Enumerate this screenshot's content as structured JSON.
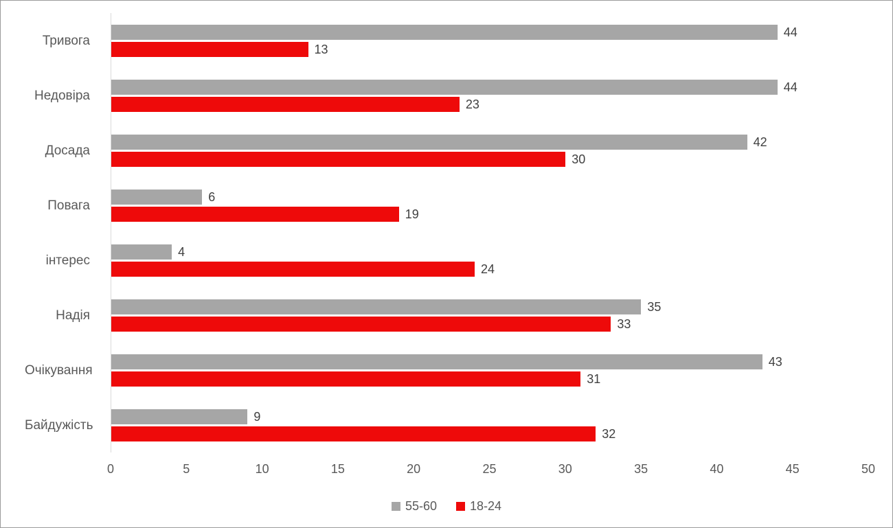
{
  "chart_data": {
    "type": "bar",
    "orientation": "horizontal",
    "title": "",
    "xlabel": "",
    "ylabel": "",
    "xlim": [
      0,
      50
    ],
    "xticks": [
      0,
      5,
      10,
      15,
      20,
      25,
      30,
      35,
      40,
      45,
      50
    ],
    "grid": false,
    "legend_position": "bottom",
    "categories": [
      "Тривога",
      "Недовіра",
      "Досада",
      "Повага",
      "інтерес",
      "Надія",
      "Очікування",
      "Байдужість"
    ],
    "series": [
      {
        "name": "55-60",
        "color": "#a6a6a6",
        "values": [
          44,
          44,
          42,
          6,
          4,
          35,
          43,
          9
        ]
      },
      {
        "name": "18-24",
        "color": "#ee0a0a",
        "values": [
          13,
          23,
          30,
          19,
          24,
          33,
          31,
          32
        ]
      }
    ]
  }
}
